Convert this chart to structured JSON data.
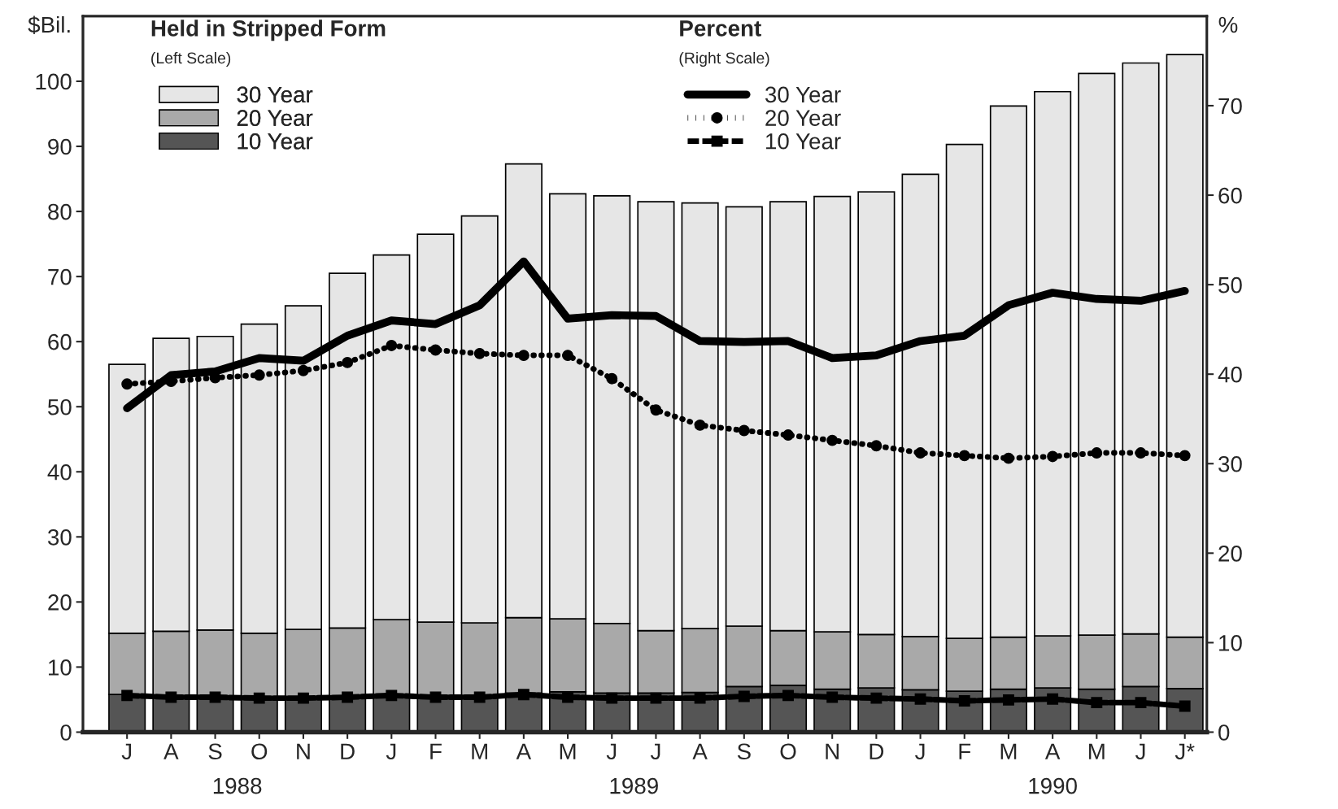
{
  "chart_data": {
    "type": "bar",
    "stacked": true,
    "categories": [
      "J",
      "A",
      "S",
      "O",
      "N",
      "D",
      "J",
      "F",
      "M",
      "A",
      "M",
      "J",
      "J",
      "A",
      "S",
      "O",
      "N",
      "D",
      "J",
      "F",
      "M",
      "A",
      "M",
      "J",
      "J*"
    ],
    "series": [
      {
        "name": "10 Year",
        "color": "#555555",
        "values": [
          5.8,
          5.5,
          5.5,
          5.3,
          5.3,
          5.3,
          5.8,
          5.5,
          5.5,
          6.0,
          6.2,
          6.0,
          6.0,
          6.1,
          7.0,
          7.2,
          6.6,
          6.8,
          6.5,
          6.3,
          6.6,
          6.8,
          6.6,
          7.0,
          6.7
        ]
      },
      {
        "name": "20 Year",
        "color": "#a9a9a9",
        "values": [
          9.4,
          10.0,
          10.2,
          9.9,
          10.5,
          10.7,
          11.5,
          11.4,
          11.3,
          11.6,
          11.2,
          10.7,
          9.6,
          9.8,
          9.3,
          8.4,
          8.8,
          8.2,
          8.2,
          8.1,
          8.0,
          8.0,
          8.3,
          8.1,
          7.9
        ]
      },
      {
        "name": "30 Year",
        "color": "#e6e6e6",
        "values": [
          41.3,
          45.0,
          45.1,
          47.5,
          49.7,
          54.5,
          56.0,
          59.6,
          62.5,
          69.7,
          65.3,
          65.7,
          65.9,
          65.4,
          64.4,
          65.9,
          66.9,
          68.0,
          71.0,
          75.9,
          81.6,
          83.6,
          86.3,
          87.7,
          89.5
        ]
      },
      {
        "name": "30 Year",
        "type": "line",
        "axis": "y2",
        "color": "#000000",
        "line_style": "solid",
        "marker": "none",
        "values": [
          36.2,
          39.9,
          40.3,
          41.8,
          41.5,
          44.3,
          46.0,
          45.6,
          47.7,
          52.6,
          46.2,
          46.6,
          46.5,
          43.7,
          43.6,
          43.7,
          41.8,
          42.1,
          43.7,
          44.3,
          47.7,
          49.1,
          48.4,
          48.2,
          49.3
        ]
      },
      {
        "name": "20 Year",
        "type": "line",
        "axis": "y2",
        "color": "#000000",
        "line_style": "dotted",
        "marker": "circle",
        "values": [
          38.9,
          39.2,
          39.6,
          39.9,
          40.4,
          41.3,
          43.2,
          42.7,
          42.3,
          42.1,
          42.1,
          39.5,
          36.0,
          34.3,
          33.7,
          33.2,
          32.6,
          32.0,
          31.2,
          30.9,
          30.6,
          30.8,
          31.2,
          31.2,
          30.9
        ]
      },
      {
        "name": "10 Year",
        "type": "line",
        "axis": "y2",
        "color": "#000000",
        "line_style": "dashed",
        "marker": "square",
        "values": [
          4.1,
          3.9,
          3.9,
          3.8,
          3.8,
          3.9,
          4.1,
          3.9,
          3.9,
          4.2,
          3.9,
          3.8,
          3.8,
          3.8,
          4.0,
          4.1,
          3.9,
          3.8,
          3.7,
          3.5,
          3.6,
          3.7,
          3.3,
          3.3,
          2.9
        ]
      }
    ],
    "ylabel": "$Bil.",
    "y2label": "%",
    "ylim": [
      0,
      110
    ],
    "yticks": [
      0,
      10,
      20,
      30,
      40,
      50,
      60,
      70,
      80,
      90,
      100
    ],
    "y2lim": [
      0,
      80
    ],
    "y2ticks": [
      0,
      10,
      20,
      30,
      40,
      50,
      60,
      70
    ],
    "annotations": [
      "Held in Stripped Form",
      "(Left Scale)",
      "Percent",
      "(Right Scale)",
      "1988",
      "1989",
      "1990"
    ],
    "legend": "top left",
    "grid": false
  }
}
